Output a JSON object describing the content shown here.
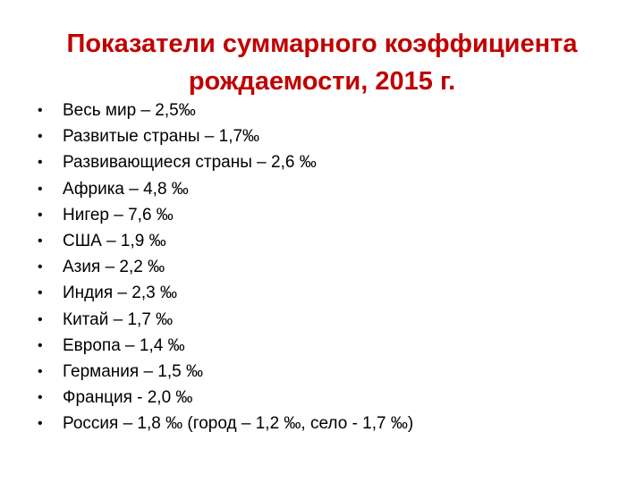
{
  "title": {
    "line1": "Показатели суммарного коэффициента",
    "line2": "рождаемости, 2015 г."
  },
  "bullet_glyph": "•",
  "items": [
    "Весь мир – 2,5‰",
    "Развитые страны – 1,7‰",
    "Развивающиеся страны – 2,6 ‰",
    "Африка – 4,8 ‰",
    "Нигер – 7,6 ‰",
    "США – 1,9 ‰",
    "Азия – 2,2 ‰",
    "Индия – 2,3 ‰",
    "Китай – 1,7 ‰",
    "Европа – 1,4 ‰",
    "Германия – 1,5 ‰",
    "Франция - 2,0 ‰",
    "Россия – 1,8 ‰ (город – 1,2 ‰, село - 1,7 ‰)"
  ],
  "colors": {
    "title": "#c00000",
    "text": "#000000",
    "background": "#ffffff"
  }
}
